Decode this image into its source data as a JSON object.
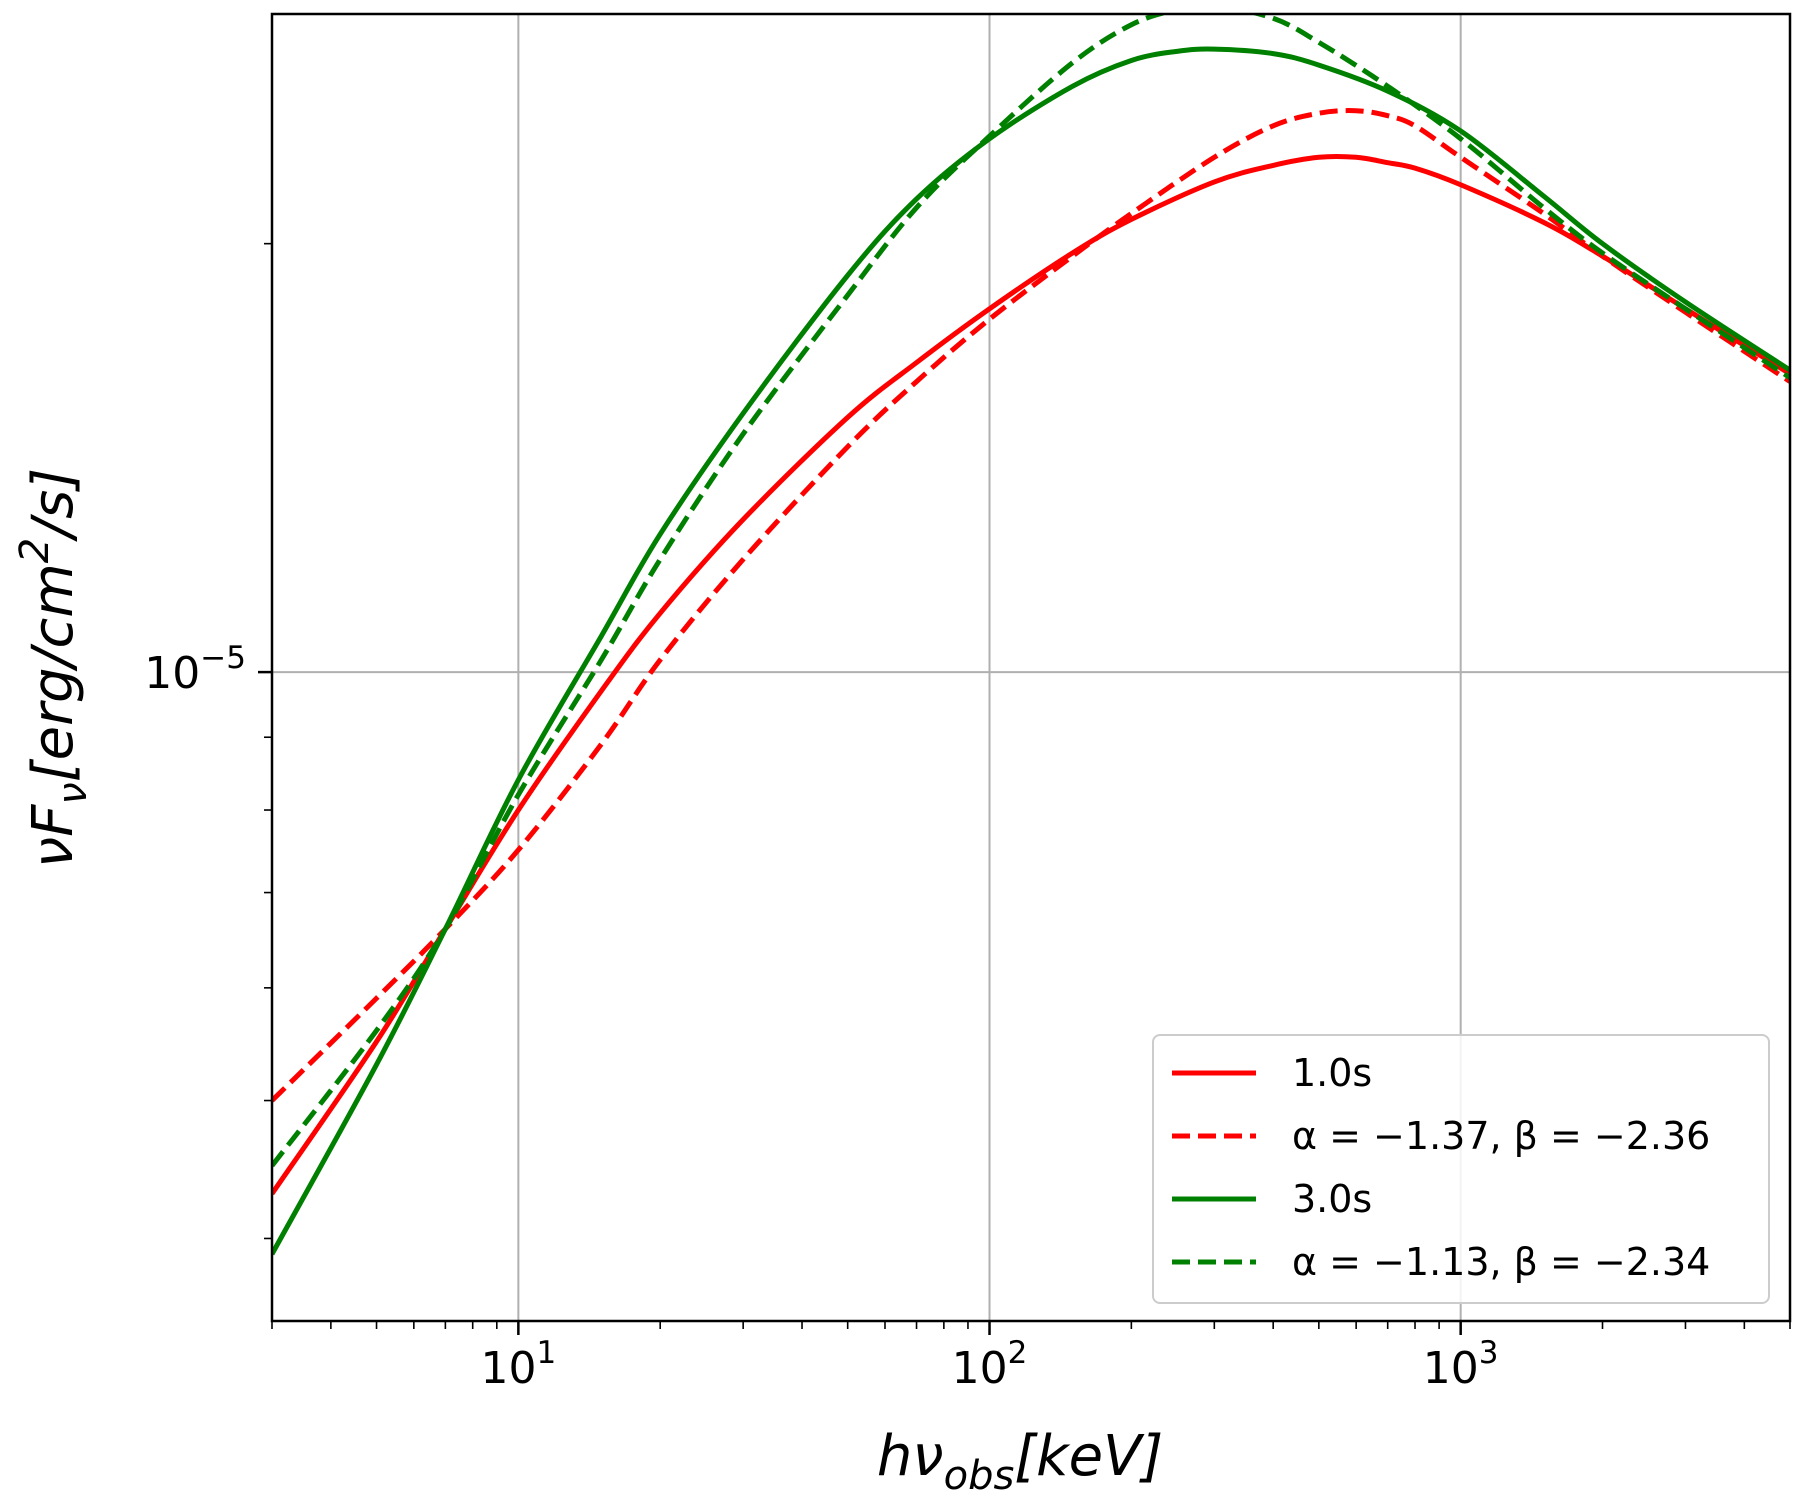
{
  "chart_data": {
    "type": "line",
    "xscale": "log",
    "yscale": "log",
    "xlim": [
      3.0,
      5000.0
    ],
    "ylim": [
      3.5e-06,
      2.9e-05
    ],
    "xlabel": {
      "base": "hν",
      "sub": "obs",
      "rest": "[keV]"
    },
    "ylabel": {
      "base": "νF",
      "sub": "ν",
      "rest": "[erg/cm",
      "sup": "2",
      "tail": "/s]"
    },
    "xticks": [
      {
        "value": 10,
        "base": "10",
        "exp": "1"
      },
      {
        "value": 100,
        "base": "10",
        "exp": "2"
      },
      {
        "value": 1000,
        "base": "10",
        "exp": "3"
      }
    ],
    "yticks": [
      {
        "value": 1e-05,
        "base": "10",
        "exp": "−5"
      }
    ],
    "grid": true,
    "legend_position": "lower-right",
    "series": [
      {
        "name": "1.0s",
        "color": "#ff0000",
        "style": "solid",
        "x": [
          3,
          5,
          7,
          10,
          15,
          20,
          30,
          50,
          70,
          100,
          150,
          200,
          300,
          400,
          500,
          600,
          700,
          800,
          1000,
          1500,
          2000,
          3000,
          5000
        ],
        "y": [
          4.3e-06,
          5.5e-06,
          6.6e-06,
          8e-06,
          9.7e-06,
          1.1e-05,
          1.28e-05,
          1.51e-05,
          1.65e-05,
          1.8e-05,
          1.97e-05,
          2.08e-05,
          2.21e-05,
          2.27e-05,
          2.3e-05,
          2.3e-05,
          2.28e-05,
          2.26e-05,
          2.2e-05,
          2.07e-05,
          1.96e-05,
          1.8e-05,
          1.62e-05
        ]
      },
      {
        "name": "α = −1.37, β = −2.36",
        "color": "#ff0000",
        "style": "dashed",
        "x": [
          3,
          5,
          7,
          10,
          15,
          20,
          30,
          50,
          70,
          100,
          150,
          200,
          300,
          400,
          500,
          600,
          700,
          800,
          1000,
          1500,
          2000,
          3000,
          5000
        ],
        "y": [
          5e-06,
          5.9e-06,
          6.6e-06,
          7.5e-06,
          8.9e-06,
          1.02e-05,
          1.2e-05,
          1.44e-05,
          1.6e-05,
          1.77e-05,
          1.96e-05,
          2.1e-05,
          2.3e-05,
          2.42e-05,
          2.47e-05,
          2.48e-05,
          2.46e-05,
          2.42e-05,
          2.3e-05,
          2.1e-05,
          1.96e-05,
          1.79e-05,
          1.6e-05
        ]
      },
      {
        "name": "3.0s",
        "color": "#008000",
        "style": "solid",
        "x": [
          3,
          5,
          7,
          10,
          15,
          20,
          30,
          50,
          70,
          100,
          150,
          200,
          250,
          300,
          400,
          500,
          700,
          1000,
          1500,
          2000,
          3000,
          5000
        ],
        "y": [
          3.9e-06,
          5.3e-06,
          6.6e-06,
          8.4e-06,
          1.06e-05,
          1.25e-05,
          1.52e-05,
          1.9e-05,
          2.15e-05,
          2.37e-05,
          2.58e-05,
          2.69e-05,
          2.73e-05,
          2.74e-05,
          2.72e-05,
          2.67e-05,
          2.56e-05,
          2.4e-05,
          2.16e-05,
          2e-05,
          1.82e-05,
          1.63e-05
        ]
      },
      {
        "name": "α = −1.13, β = −2.34",
        "color": "#008000",
        "style": "dashed",
        "x": [
          3,
          5,
          7,
          10,
          15,
          20,
          30,
          50,
          70,
          100,
          150,
          200,
          250,
          300,
          400,
          500,
          700,
          1000,
          1500,
          2000,
          3000,
          5000
        ],
        "y": [
          4.5e-06,
          5.6e-06,
          6.6e-06,
          8.2e-06,
          1.02e-05,
          1.2e-05,
          1.47e-05,
          1.84e-05,
          2.12e-05,
          2.38e-05,
          2.68e-05,
          2.85e-05,
          2.92e-05,
          2.94e-05,
          2.88e-05,
          2.77e-05,
          2.58e-05,
          2.37e-05,
          2.12e-05,
          1.97e-05,
          1.8e-05,
          1.61e-05
        ]
      }
    ]
  }
}
